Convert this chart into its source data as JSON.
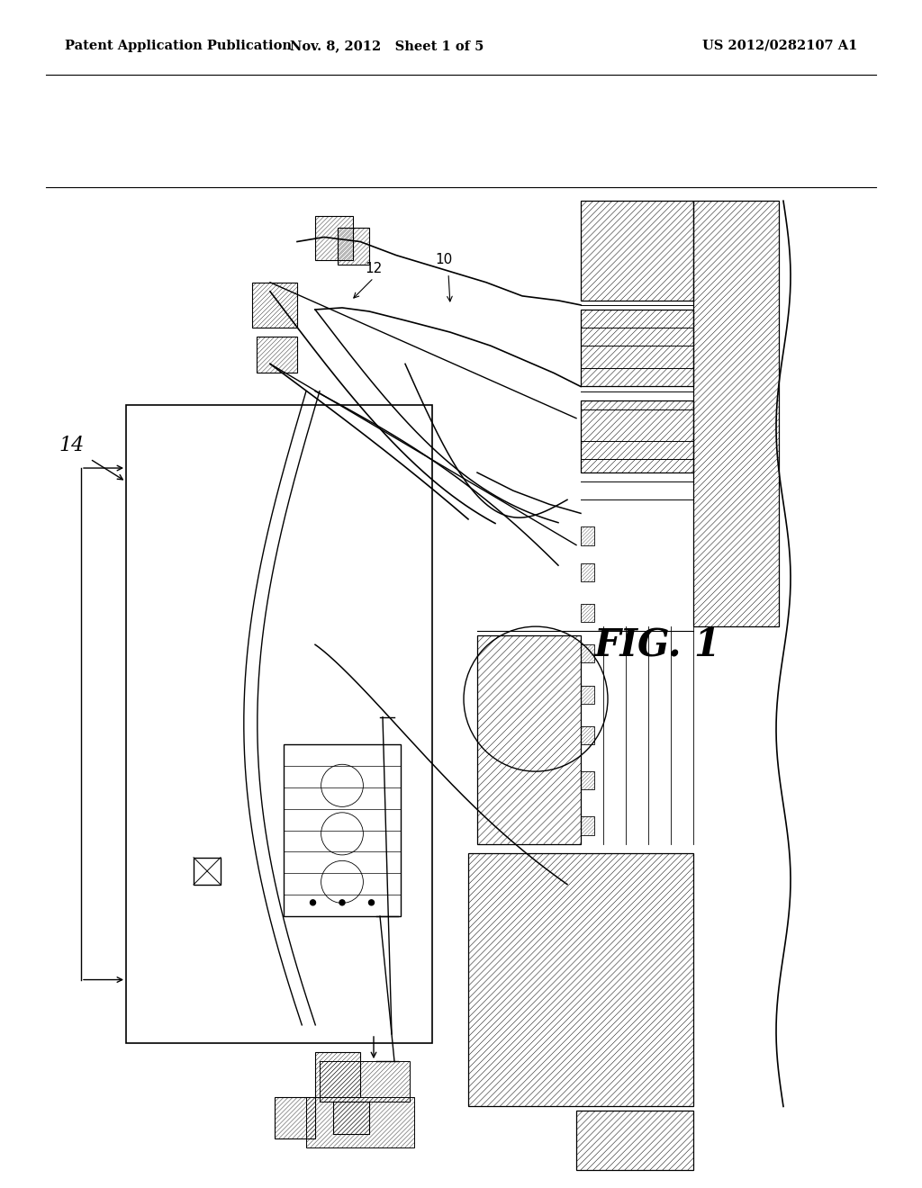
{
  "bg_color": "#ffffff",
  "header_text_left": "Patent Application Publication",
  "header_text_mid": "Nov. 8, 2012   Sheet 1 of 5",
  "header_text_right": "US 2012/0282107 A1",
  "fig_label": "FIG. 1",
  "line_color": "#000000"
}
